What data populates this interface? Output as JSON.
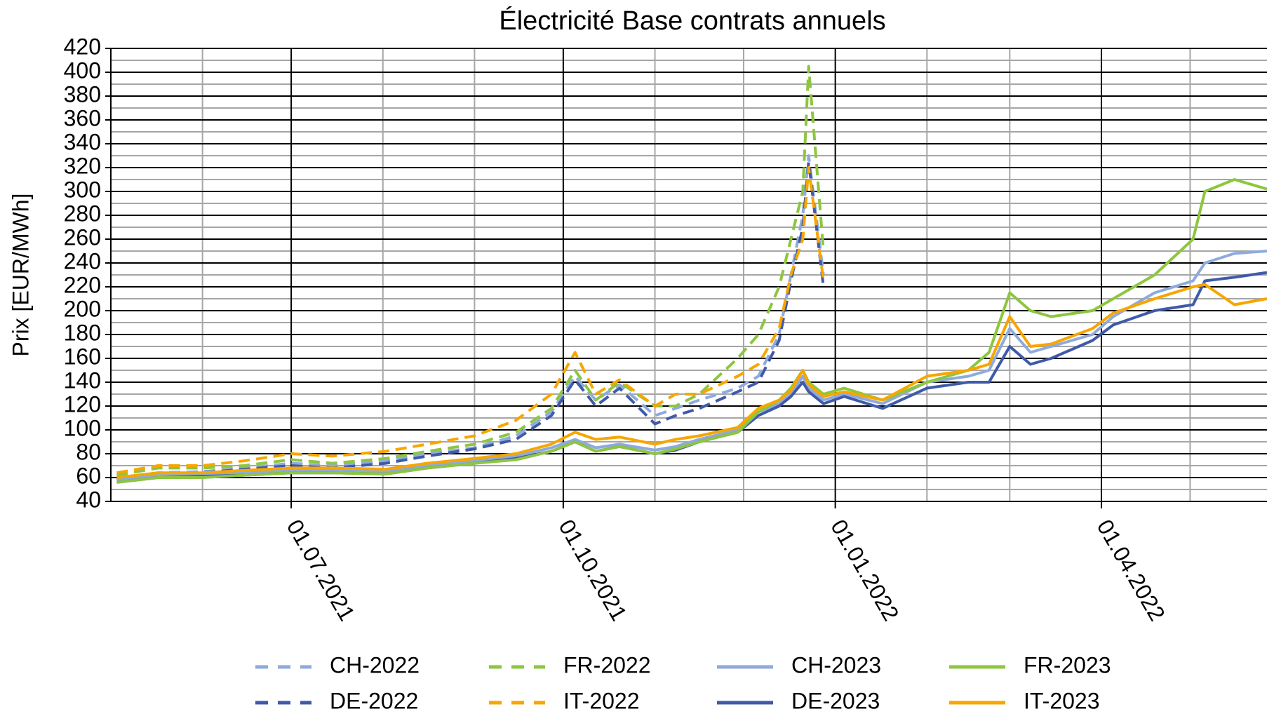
{
  "chart_data": {
    "type": "line",
    "title": "Électricité Base contrats annuels",
    "y_label": "Prix [EUR/MWh]",
    "x": [
      "2021-05-03",
      "2021-05-17",
      "2021-06-01",
      "2021-06-15",
      "2021-07-01",
      "2021-07-15",
      "2021-08-02",
      "2021-08-16",
      "2021-09-01",
      "2021-09-15",
      "2021-09-27",
      "2021-10-05",
      "2021-10-12",
      "2021-10-20",
      "2021-11-01",
      "2021-11-08",
      "2021-11-16",
      "2021-11-29",
      "2021-12-06",
      "2021-12-13",
      "2021-12-17",
      "2021-12-21",
      "2021-12-23",
      "2021-12-28",
      "2022-01-04",
      "2022-01-17",
      "2022-02-01",
      "2022-02-15",
      "2022-02-22",
      "2022-03-01",
      "2022-03-08",
      "2022-03-15",
      "2022-03-29",
      "2022-04-05",
      "2022-04-19",
      "2022-05-02",
      "2022-05-06",
      "2022-05-16",
      "2022-05-27"
    ],
    "xlim": [
      "2021-05-01",
      "2022-05-27"
    ],
    "xticks": [
      {
        "value": "2021-07-01",
        "label": "01.07.2021"
      },
      {
        "value": "2021-10-01",
        "label": "01.10.2021"
      },
      {
        "value": "2022-01-01",
        "label": "01.01.2022"
      },
      {
        "value": "2022-04-01",
        "label": "01.04.2022"
      }
    ],
    "x_minor_ticks": [
      "2021-06-01",
      "2021-08-01",
      "2021-09-01",
      "2021-11-01",
      "2021-12-01",
      "2022-02-01",
      "2022-03-01",
      "2022-05-01"
    ],
    "ylim": [
      40,
      420
    ],
    "yticks": [
      40,
      60,
      80,
      100,
      120,
      140,
      160,
      180,
      200,
      220,
      240,
      260,
      280,
      300,
      320,
      340,
      360,
      380,
      400,
      420
    ],
    "y_minor_ticks": [
      50,
      70,
      90,
      110,
      130,
      150,
      170,
      190,
      210,
      230,
      250,
      270,
      290,
      310,
      330,
      350,
      370,
      390,
      410
    ],
    "grid": true,
    "series": [
      {
        "name": "CH-2022",
        "color": "#8faadc",
        "style": "dashed",
        "values": [
          60,
          64,
          65,
          68,
          72,
          70,
          74,
          80,
          85,
          95,
          115,
          145,
          125,
          138,
          112,
          118,
          125,
          135,
          145,
          180,
          230,
          280,
          330,
          230,
          null,
          null,
          null,
          null,
          null,
          null,
          null,
          null,
          null,
          null,
          null,
          null,
          null,
          null,
          null
        ]
      },
      {
        "name": "DE-2022",
        "color": "#3f5aa8",
        "style": "dashed",
        "values": [
          58,
          63,
          64,
          67,
          70,
          68,
          72,
          78,
          84,
          92,
          112,
          142,
          120,
          135,
          105,
          112,
          118,
          132,
          140,
          175,
          225,
          270,
          325,
          220,
          null,
          null,
          null,
          null,
          null,
          null,
          null,
          null,
          null,
          null,
          null,
          null,
          null,
          null,
          null
        ]
      },
      {
        "name": "FR-2022",
        "color": "#8dc63f",
        "style": "dashed",
        "values": [
          62,
          68,
          68,
          70,
          75,
          72,
          76,
          82,
          88,
          98,
          118,
          150,
          125,
          140,
          120,
          120,
          130,
          160,
          180,
          220,
          260,
          300,
          405,
          250,
          null,
          null,
          null,
          null,
          null,
          null,
          null,
          null,
          null,
          null,
          null,
          null,
          null,
          null,
          null
        ]
      },
      {
        "name": "IT-2022",
        "color": "#f7a600",
        "style": "dashed",
        "values": [
          64,
          70,
          70,
          74,
          80,
          78,
          82,
          88,
          95,
          108,
          130,
          165,
          130,
          142,
          120,
          130,
          130,
          145,
          155,
          185,
          230,
          260,
          320,
          225,
          null,
          null,
          null,
          null,
          null,
          null,
          null,
          null,
          null,
          null,
          null,
          null,
          null,
          null,
          null
        ]
      },
      {
        "name": "CH-2023",
        "color": "#8faadc",
        "style": "solid",
        "values": [
          58,
          62,
          62,
          64,
          66,
          66,
          65,
          70,
          74,
          78,
          85,
          92,
          85,
          88,
          83,
          86,
          92,
          100,
          115,
          122,
          130,
          145,
          135,
          125,
          130,
          122,
          140,
          145,
          150,
          185,
          165,
          170,
          180,
          195,
          215,
          225,
          240,
          248,
          250
        ]
      },
      {
        "name": "DE-2023",
        "color": "#3f5aa8",
        "style": "solid",
        "values": [
          56,
          60,
          61,
          62,
          64,
          64,
          63,
          68,
          72,
          76,
          82,
          90,
          82,
          86,
          80,
          83,
          90,
          98,
          112,
          120,
          128,
          140,
          132,
          122,
          128,
          118,
          135,
          140,
          140,
          170,
          155,
          160,
          175,
          188,
          200,
          205,
          225,
          228,
          232
        ]
      },
      {
        "name": "FR-2023",
        "color": "#8dc63f",
        "style": "solid",
        "values": [
          56,
          60,
          60,
          62,
          64,
          64,
          63,
          68,
          72,
          75,
          82,
          90,
          82,
          86,
          80,
          84,
          90,
          98,
          115,
          125,
          135,
          150,
          140,
          130,
          135,
          125,
          140,
          150,
          165,
          215,
          200,
          195,
          200,
          210,
          230,
          260,
          300,
          310,
          302
        ]
      },
      {
        "name": "IT-2023",
        "color": "#f7a600",
        "style": "solid",
        "values": [
          60,
          64,
          64,
          66,
          68,
          68,
          67,
          72,
          76,
          80,
          88,
          98,
          92,
          94,
          88,
          92,
          95,
          102,
          118,
          125,
          133,
          150,
          138,
          128,
          132,
          125,
          145,
          150,
          155,
          195,
          170,
          172,
          185,
          198,
          210,
          220,
          222,
          205,
          210
        ]
      }
    ],
    "legend": "bottom"
  }
}
